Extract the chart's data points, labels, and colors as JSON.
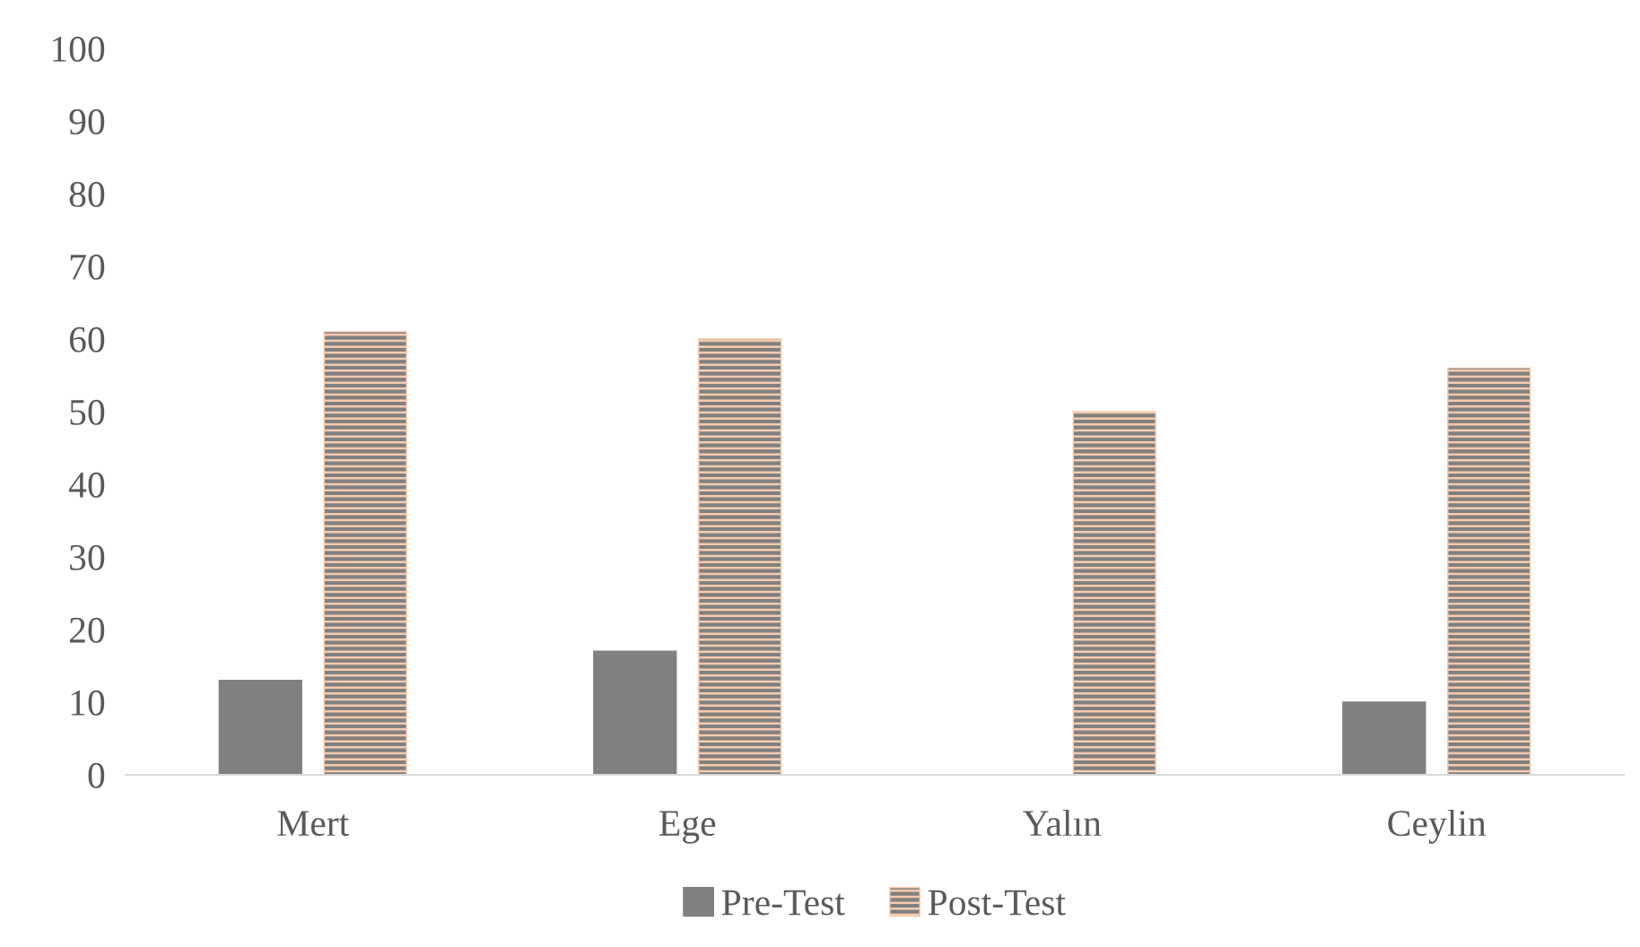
{
  "chart_data": {
    "type": "bar",
    "categories": [
      "Mert",
      "Ege",
      "Yalın",
      "Ceylin"
    ],
    "series": [
      {
        "name": "Pre-Test",
        "color": "#808080",
        "values": [
          13,
          17,
          0,
          10
        ]
      },
      {
        "name": "Post-Test",
        "color": "#f8cbad",
        "values": [
          61,
          60,
          50,
          56
        ]
      }
    ],
    "ylim": [
      0,
      100
    ],
    "yticks": [
      0,
      10,
      20,
      30,
      40,
      50,
      60,
      70,
      80,
      90,
      100
    ],
    "grid": false,
    "legend": "bottom"
  }
}
